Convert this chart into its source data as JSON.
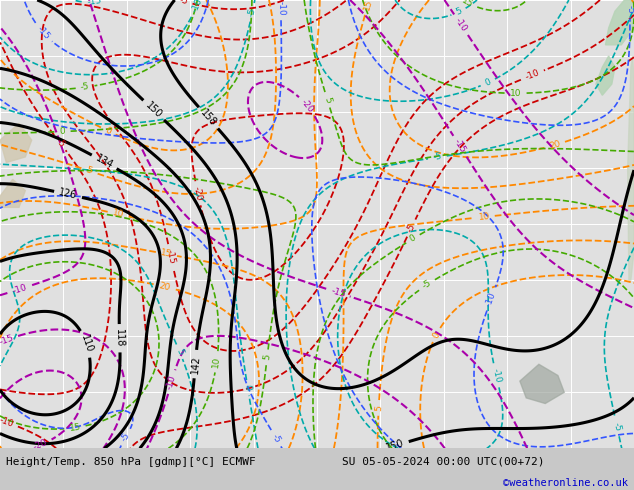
{
  "title_left": "Height/Temp. 850 hPa [gdmp][°C] ECMWF",
  "title_right": "SU 05-05-2024 00:00 UTC(00+72)",
  "copyright": "©weatheronline.co.uk",
  "bg_color": "#c8c8c8",
  "map_bg_color": "#e0e0e0",
  "grid_color": "#ffffff",
  "grid_linewidth": 0.7,
  "fig_width": 6.34,
  "fig_height": 4.9,
  "dpi": 100,
  "title_fontsize": 8,
  "copyright_fontsize": 7.5,
  "copyright_color": "#0000cc",
  "nz_color": "#b8d4b8",
  "australia_color": "#d0c8b0",
  "land_gray_color": "#a0a8a0",
  "sa_color": "#c8d4c0"
}
